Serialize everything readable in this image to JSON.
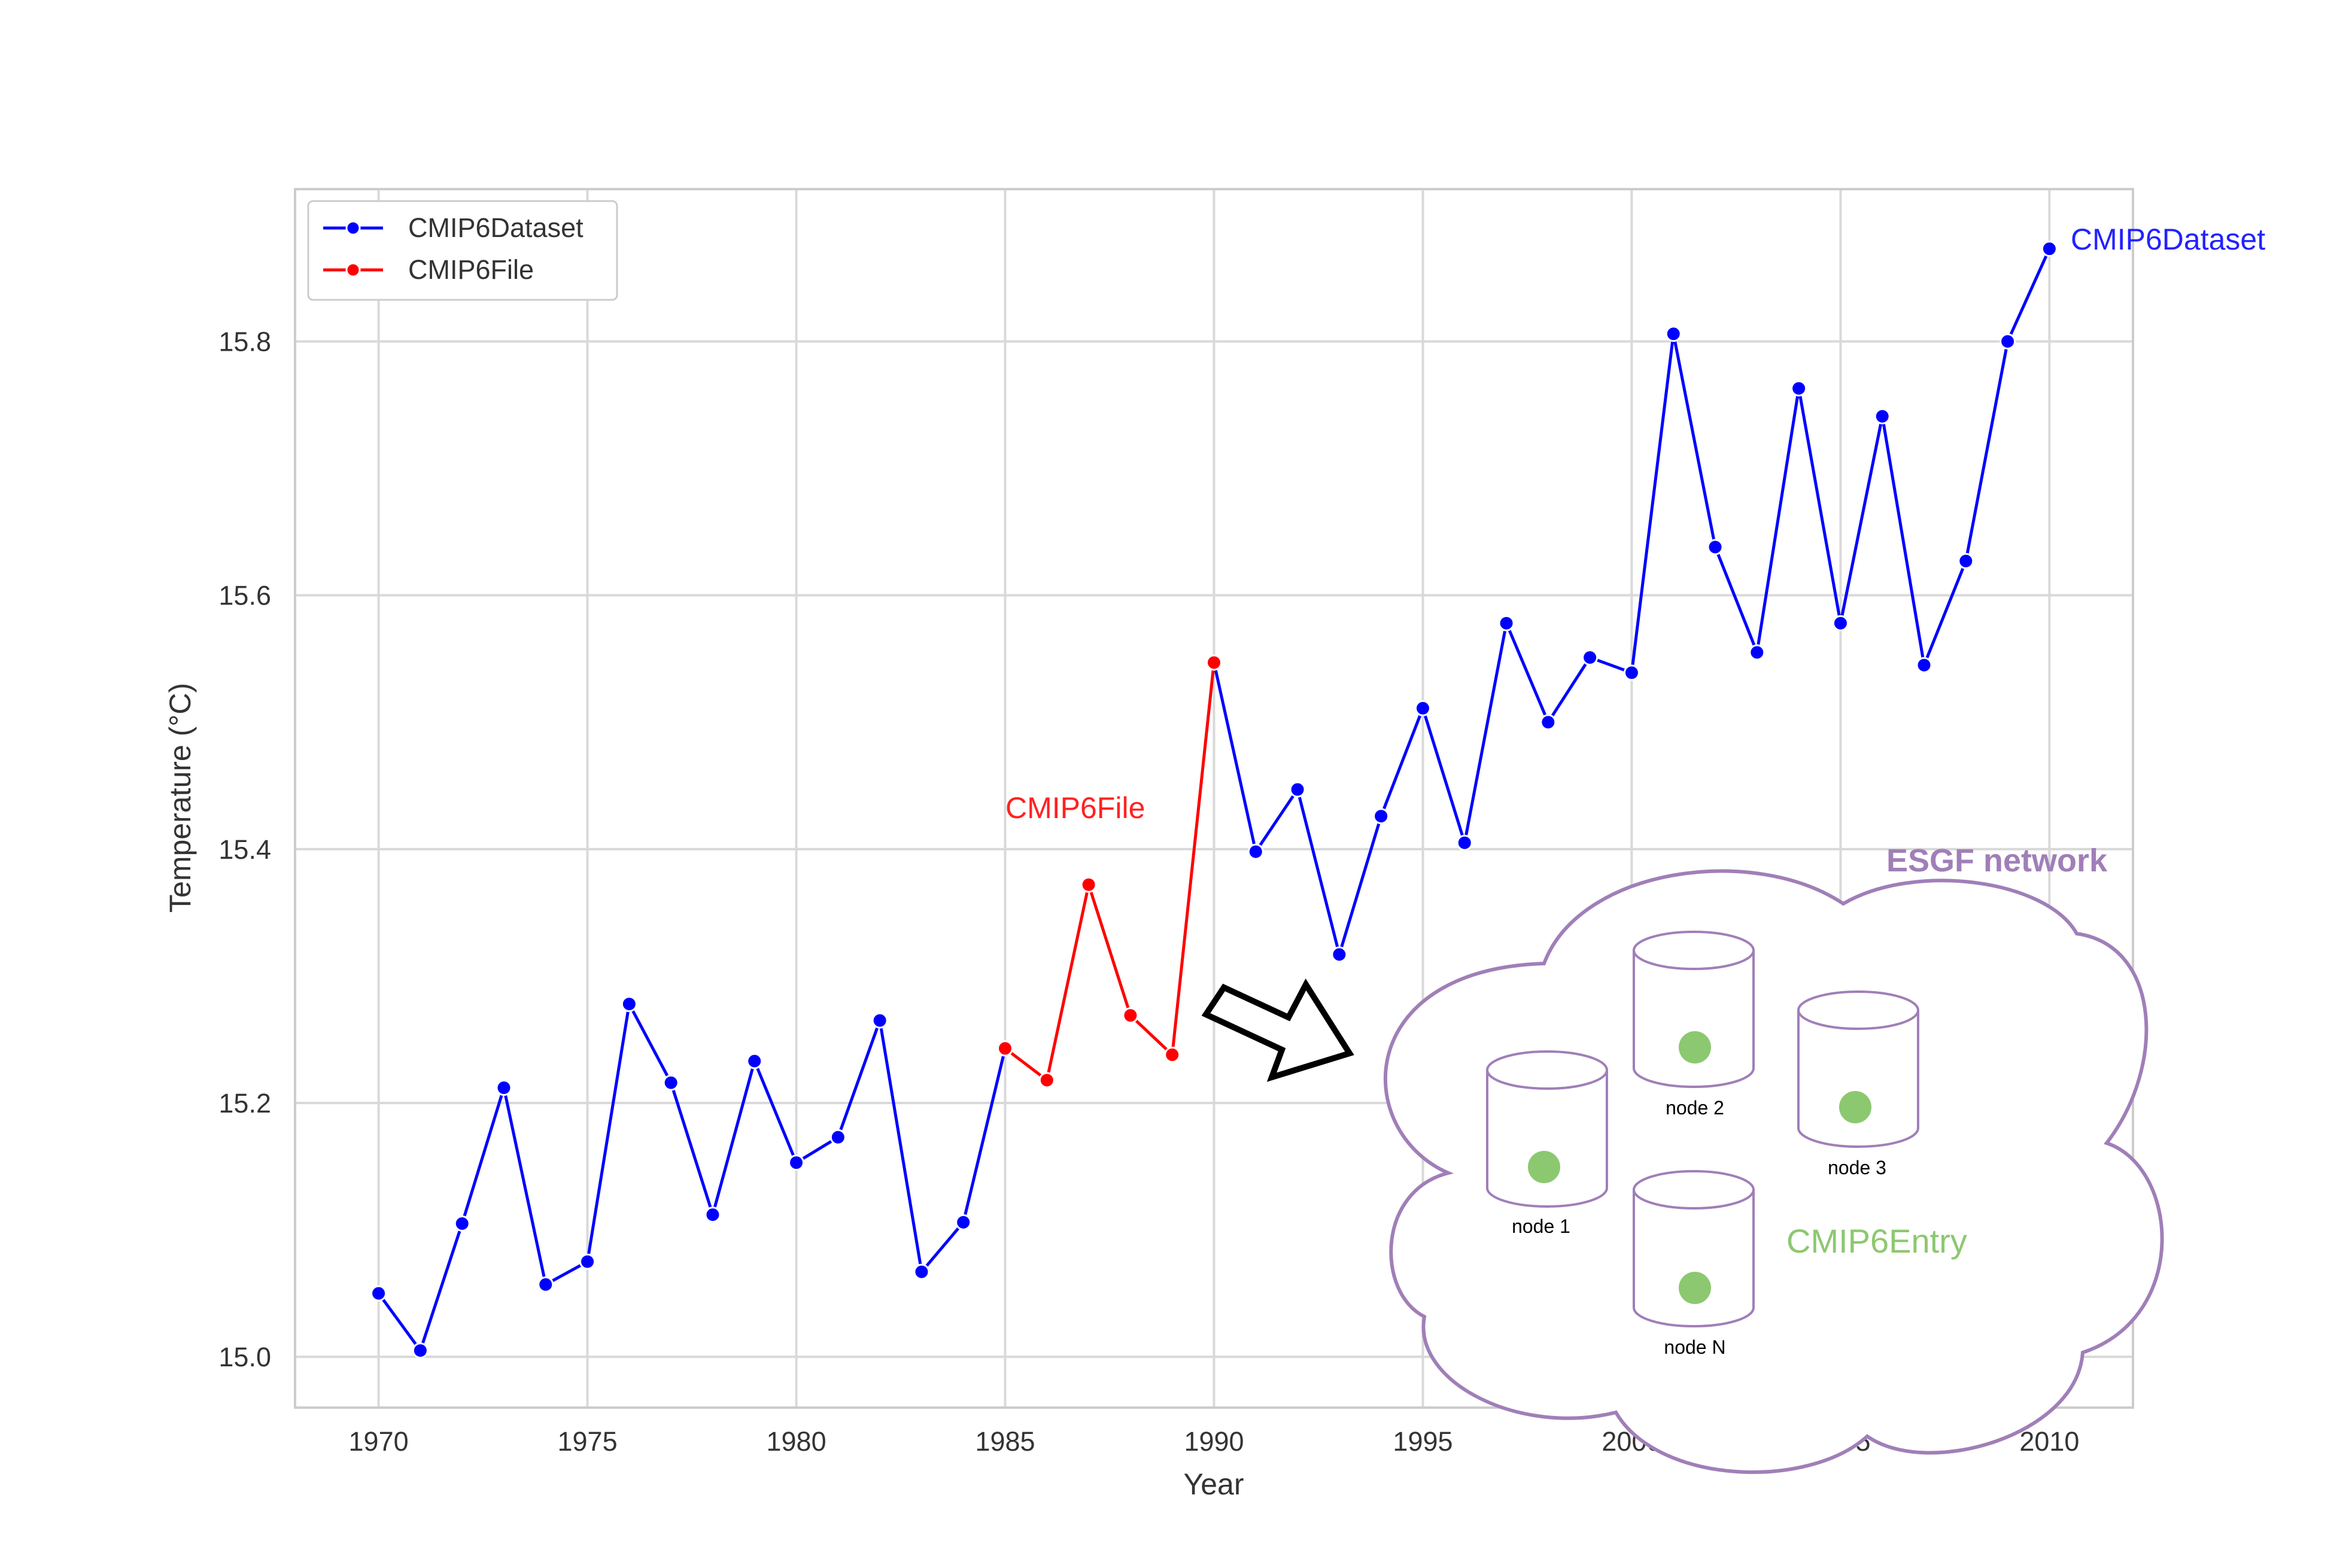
{
  "chart_data": {
    "type": "line",
    "xlabel": "Year",
    "ylabel": "Temperature (°C)",
    "xlim": [
      1968,
      2012
    ],
    "ylim": [
      14.96,
      15.92
    ],
    "xticks": [
      1970,
      1975,
      1980,
      1985,
      1990,
      1995,
      2000,
      2005,
      2010
    ],
    "yticks": [
      15.0,
      15.2,
      15.4,
      15.6,
      15.8
    ],
    "xtick_labels": [
      "1970",
      "1975",
      "1980",
      "1985",
      "1990",
      "1995",
      "2000",
      "2005",
      "2010"
    ],
    "ytick_labels": [
      "15.0",
      "15.2",
      "15.4",
      "15.6",
      "15.8"
    ],
    "grid": true,
    "legend_placement": "top-left",
    "series": [
      {
        "name": "CMIP6Dataset",
        "color": "#0000ff",
        "x": [
          1970,
          1971,
          1972,
          1973,
          1974,
          1975,
          1976,
          1977,
          1978,
          1979,
          1980,
          1981,
          1982,
          1983,
          1984,
          1985,
          null,
          1990,
          1991,
          1992,
          1993,
          1994,
          1995,
          1996,
          1997,
          1998,
          1999,
          2000,
          2001,
          2002,
          2003,
          2004,
          2005,
          2006,
          2007,
          2008,
          2009,
          2010
        ],
        "y": [
          15.05,
          15.005,
          15.105,
          15.212,
          15.057,
          15.075,
          15.278,
          15.216,
          15.112,
          15.233,
          15.153,
          15.173,
          15.265,
          15.067,
          15.106,
          15.243,
          null,
          15.547,
          15.398,
          15.447,
          15.317,
          15.426,
          15.511,
          15.405,
          15.578,
          15.5,
          15.551,
          15.539,
          15.806,
          15.638,
          15.555,
          15.763,
          15.578,
          15.741,
          15.545,
          15.627,
          15.8,
          15.873
        ]
      },
      {
        "name": "CMIP6File",
        "color": "#ff0000",
        "x": [
          1985,
          1986,
          1987,
          1988,
          1989,
          1990
        ],
        "y": [
          15.243,
          15.218,
          15.372,
          15.269,
          15.238,
          15.547
        ]
      }
    ],
    "annotations": [
      {
        "text": "CMIP6Dataset",
        "color": "#2222ff"
      },
      {
        "text": "CMIP6File",
        "color": "#ff2222"
      }
    ]
  },
  "diagram": {
    "title": "ESGF network",
    "entry_label": "CMIP6Entry",
    "nodes": [
      "node 1",
      "node 2",
      "node 3",
      "node N"
    ],
    "cloud_color": "#a07fb8",
    "entry_color": "#8cc870"
  }
}
